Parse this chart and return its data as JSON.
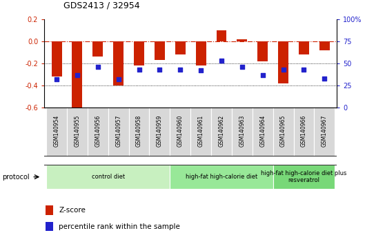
{
  "title": "GDS2413 / 32954",
  "samples": [
    "GSM140954",
    "GSM140955",
    "GSM140956",
    "GSM140957",
    "GSM140958",
    "GSM140959",
    "GSM140960",
    "GSM140961",
    "GSM140962",
    "GSM140963",
    "GSM140964",
    "GSM140965",
    "GSM140966",
    "GSM140967"
  ],
  "zscore": [
    -0.32,
    -0.62,
    -0.14,
    -0.4,
    -0.22,
    -0.17,
    -0.12,
    -0.22,
    0.1,
    0.02,
    -0.18,
    -0.38,
    -0.12,
    -0.08
  ],
  "percentile_pct": [
    32,
    37,
    46,
    32,
    43,
    43,
    43,
    42,
    53,
    46,
    37,
    43,
    43,
    33
  ],
  "ylim": [
    -0.6,
    0.2
  ],
  "yticks_left": [
    -0.6,
    -0.4,
    -0.2,
    0.0,
    0.2
  ],
  "yticks_right": [
    0,
    25,
    50,
    75,
    100
  ],
  "bar_color": "#cc2200",
  "dot_color": "#2222cc",
  "groups": [
    {
      "label": "control diet",
      "start": 0,
      "end": 6,
      "color": "#c8f0c0"
    },
    {
      "label": "high-fat high-calorie diet",
      "start": 6,
      "end": 11,
      "color": "#98e898"
    },
    {
      "label": "high-fat high-calorie diet plus\nresveratrol",
      "start": 11,
      "end": 14,
      "color": "#78d878"
    }
  ],
  "legend_zscore": "Z-score",
  "legend_percentile": "percentile rank within the sample",
  "protocol_label": "protocol",
  "hline_color": "#cc2200",
  "dot_size": 14
}
